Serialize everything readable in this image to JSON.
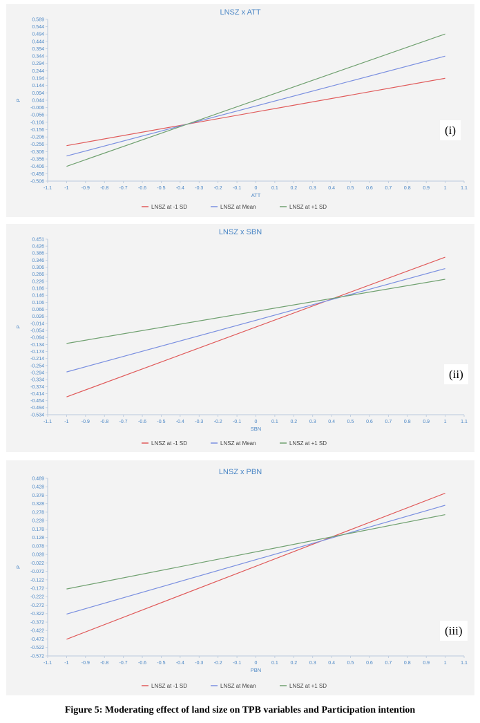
{
  "caption": "Figure 5: Moderating effect of land size on TPB variables and Participation intention",
  "colors": {
    "minus_sd": "#e05a5a",
    "mean": "#7a8fe0",
    "plus_sd": "#6fa06f"
  },
  "chart_data": [
    {
      "type": "line",
      "title": "LNSZ x ATT",
      "xlabel": "ATT",
      "ylabel": "P",
      "tag": "(i)",
      "xlim": [
        -1.1,
        1.1
      ],
      "ylim": [
        -0.506,
        0.589
      ],
      "x_ticks": [
        "-1.1",
        "-1",
        "-0.9",
        "-0.8",
        "-0.7",
        "-0.6",
        "-0.5",
        "-0.4",
        "-0.3",
        "-0.2",
        "-0.1",
        "0",
        "0.1",
        "0.2",
        "0.3",
        "0.4",
        "0.5",
        "0.6",
        "0.7",
        "0.8",
        "0.9",
        "1",
        "1.1"
      ],
      "y_ticks": [
        "0.589",
        "0.544",
        "0.494",
        "0.444",
        "0.394",
        "0.344",
        "0.294",
        "0.244",
        "0.194",
        "0.144",
        "0.094",
        "0.044",
        "-0.006",
        "-0.056",
        "-0.106",
        "-0.156",
        "-0.206",
        "-0.256",
        "-0.306",
        "-0.356",
        "-0.406",
        "-0.456",
        "-0.506"
      ],
      "legend_position": "bottom-center",
      "grid": false,
      "series": [
        {
          "name": "LNSZ at -1 SD",
          "color": "#e05a5a",
          "x": [
            -1,
            1
          ],
          "y": [
            -0.266,
            0.19
          ]
        },
        {
          "name": "LNSZ at Mean",
          "color": "#7a8fe0",
          "x": [
            -1,
            1
          ],
          "y": [
            -0.336,
            0.34
          ]
        },
        {
          "name": "LNSZ at +1 SD",
          "color": "#6fa06f",
          "x": [
            -1,
            1
          ],
          "y": [
            -0.406,
            0.49
          ]
        }
      ]
    },
    {
      "type": "line",
      "title": "LNSZ x SBN",
      "xlabel": "SBN",
      "ylabel": "P",
      "tag": "(ii)",
      "xlim": [
        -1.1,
        1.1
      ],
      "ylim": [
        -0.534,
        0.451
      ],
      "x_ticks": [
        "-1.1",
        "-1",
        "-0.9",
        "-0.8",
        "-0.7",
        "-0.6",
        "-0.5",
        "-0.4",
        "-0.3",
        "-0.2",
        "-0.1",
        "0",
        "0.1",
        "0.2",
        "0.3",
        "0.4",
        "0.5",
        "0.6",
        "0.7",
        "0.8",
        "0.9",
        "1",
        "1.1"
      ],
      "y_ticks": [
        "0.451",
        "0.426",
        "0.386",
        "0.346",
        "0.306",
        "0.266",
        "0.226",
        "0.186",
        "0.146",
        "0.106",
        "0.066",
        "0.026",
        "-0.014",
        "-0.054",
        "-0.094",
        "-0.134",
        "-0.174",
        "-0.214",
        "-0.254",
        "-0.294",
        "-0.334",
        "-0.374",
        "-0.414",
        "-0.454",
        "-0.494",
        "-0.534"
      ],
      "legend_position": "bottom-center",
      "grid": false,
      "series": [
        {
          "name": "LNSZ at -1 SD",
          "color": "#e05a5a",
          "x": [
            -1,
            1
          ],
          "y": [
            -0.434,
            0.35
          ]
        },
        {
          "name": "LNSZ at Mean",
          "color": "#7a8fe0",
          "x": [
            -1,
            1
          ],
          "y": [
            -0.294,
            0.286
          ]
        },
        {
          "name": "LNSZ at +1 SD",
          "color": "#6fa06f",
          "x": [
            -1,
            1
          ],
          "y": [
            -0.134,
            0.226
          ]
        }
      ]
    },
    {
      "type": "line",
      "title": "LNSZ x PBN",
      "xlabel": "PBN",
      "ylabel": "P",
      "tag": "(iii)",
      "xlim": [
        -1.1,
        1.1
      ],
      "ylim": [
        -0.572,
        0.489
      ],
      "x_ticks": [
        "-1.1",
        "-1",
        "-0.9",
        "-0.8",
        "-0.7",
        "-0.6",
        "-0.5",
        "-0.4",
        "-0.3",
        "-0.2",
        "-0.1",
        "0",
        "0.1",
        "0.2",
        "0.3",
        "0.4",
        "0.5",
        "0.6",
        "0.7",
        "0.8",
        "0.9",
        "1",
        "1.1"
      ],
      "y_ticks": [
        "0.489",
        "0.428",
        "0.378",
        "0.328",
        "0.278",
        "0.228",
        "0.178",
        "0.128",
        "0.078",
        "0.028",
        "-0.022",
        "-0.072",
        "-0.122",
        "-0.172",
        "-0.222",
        "-0.272",
        "-0.322",
        "-0.372",
        "-0.422",
        "-0.472",
        "-0.522",
        "-0.572"
      ],
      "legend_position": "bottom-center",
      "grid": false,
      "series": [
        {
          "name": "LNSZ at -1 SD",
          "color": "#e05a5a",
          "x": [
            -1,
            1
          ],
          "y": [
            -0.472,
            0.4
          ]
        },
        {
          "name": "LNSZ at Mean",
          "color": "#7a8fe0",
          "x": [
            -1,
            1
          ],
          "y": [
            -0.322,
            0.328
          ]
        },
        {
          "name": "LNSZ at +1 SD",
          "color": "#6fa06f",
          "x": [
            -1,
            1
          ],
          "y": [
            -0.172,
            0.272
          ]
        }
      ]
    }
  ]
}
